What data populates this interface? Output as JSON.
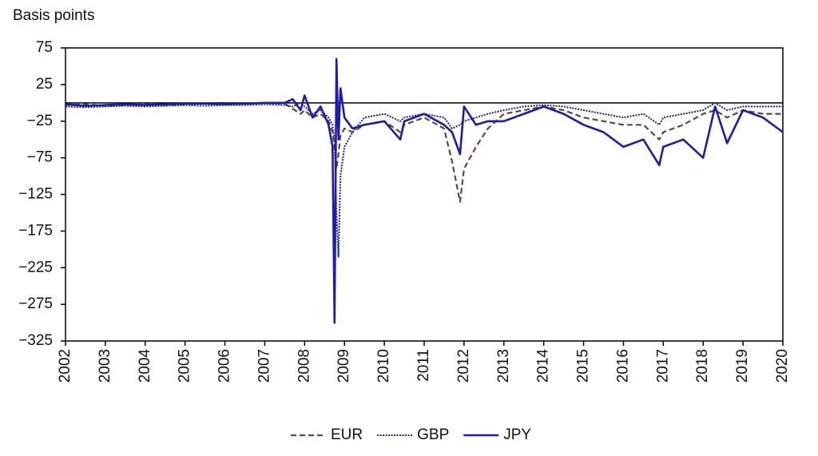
{
  "chart_data": {
    "type": "line",
    "y_label": "Basis points",
    "x": [
      2002.0,
      2002.5,
      2003.0,
      2003.5,
      2004.0,
      2004.5,
      2005.0,
      2005.5,
      2006.0,
      2006.5,
      2007.0,
      2007.5,
      2007.7,
      2007.9,
      2008.0,
      2008.2,
      2008.4,
      2008.6,
      2008.7,
      2008.75,
      2008.8,
      2008.85,
      2008.9,
      2009.0,
      2009.2,
      2009.5,
      2010.0,
      2010.4,
      2010.5,
      2011.0,
      2011.5,
      2011.7,
      2011.9,
      2012.0,
      2012.3,
      2012.6,
      2013.0,
      2013.5,
      2014.0,
      2014.5,
      2015.0,
      2015.5,
      2016.0,
      2016.5,
      2016.9,
      2017.0,
      2017.5,
      2018.0,
      2018.3,
      2018.6,
      2019.0,
      2019.5,
      2020.0
    ],
    "series": [
      {
        "name": "EUR",
        "color": "#5c4a3a",
        "style": "dashed",
        "values": [
          -3,
          -2,
          -4,
          -3,
          -2,
          -3,
          -2,
          -1,
          -2,
          -1,
          0,
          -1,
          -8,
          -15,
          -10,
          -20,
          -15,
          -25,
          -40,
          -60,
          -90,
          -70,
          -45,
          -35,
          -40,
          -30,
          -25,
          -40,
          -30,
          -20,
          -35,
          -80,
          -135,
          -90,
          -60,
          -35,
          -15,
          -10,
          -5,
          -10,
          -20,
          -25,
          -30,
          -30,
          -50,
          -40,
          -30,
          -15,
          -10,
          -20,
          -10,
          -15,
          -15
        ]
      },
      {
        "name": "GBP",
        "color": "#1a237e",
        "style": "dotted",
        "values": [
          -5,
          -6,
          -5,
          -4,
          -5,
          -4,
          -3,
          -4,
          -3,
          -3,
          -2,
          -3,
          -5,
          0,
          -5,
          -15,
          -10,
          -20,
          -30,
          -50,
          -150,
          -210,
          -100,
          -60,
          -40,
          -20,
          -15,
          -25,
          -20,
          -15,
          -20,
          -35,
          -30,
          -25,
          -20,
          -15,
          -10,
          -5,
          -3,
          -5,
          -10,
          -15,
          -20,
          -15,
          -30,
          -20,
          -15,
          -10,
          0,
          -10,
          -5,
          -5,
          -5
        ]
      },
      {
        "name": "JPY",
        "color": "#1c1cb0",
        "style": "solid",
        "values": [
          -2,
          -4,
          -3,
          -2,
          -3,
          -2,
          -1,
          -1,
          -2,
          -1,
          0,
          0,
          5,
          -10,
          10,
          -20,
          -5,
          -30,
          -60,
          -300,
          60,
          -50,
          20,
          -20,
          -35,
          -30,
          -25,
          -50,
          -25,
          -15,
          -30,
          -40,
          -70,
          -5,
          -30,
          -25,
          -25,
          -15,
          -5,
          -15,
          -30,
          -40,
          -60,
          -50,
          -85,
          -60,
          -50,
          -75,
          -5,
          -55,
          -10,
          -20,
          -40
        ]
      }
    ],
    "xlim": [
      2002,
      2020
    ],
    "xticks": [
      2002,
      2003,
      2004,
      2005,
      2006,
      2007,
      2008,
      2009,
      2010,
      2011,
      2012,
      2013,
      2014,
      2015,
      2016,
      2017,
      2018,
      2019,
      2020
    ],
    "ylim": [
      -325,
      75
    ],
    "yticks": [
      75,
      25,
      {
        "value": -25,
        "label": "−25"
      },
      {
        "value": -75,
        "label": "−75"
      },
      {
        "value": -125,
        "label": "−125"
      },
      {
        "value": -175,
        "label": "−175"
      },
      {
        "value": -225,
        "label": "−225"
      },
      {
        "value": -275,
        "label": "−275"
      },
      {
        "value": -325,
        "label": "−325"
      }
    ],
    "zero_line": true,
    "legend": "bottom"
  }
}
